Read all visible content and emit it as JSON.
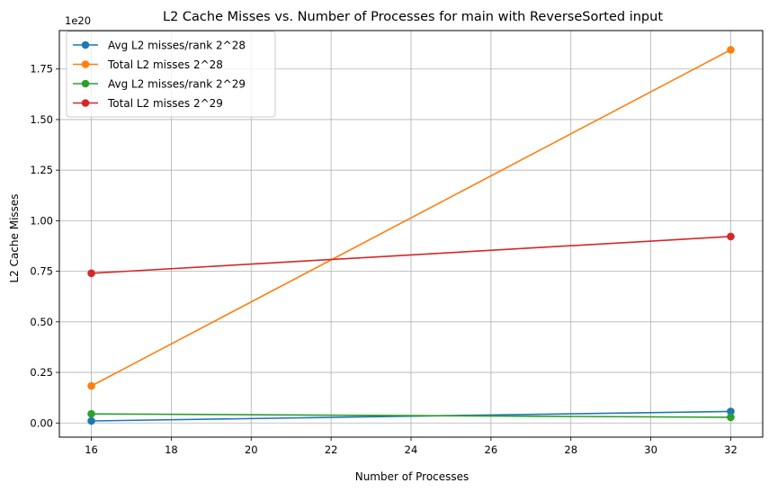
{
  "chart_data": {
    "type": "line",
    "title": "L2 Cache Misses vs. Number of Processes for main with ReverseSorted input",
    "xlabel": "Number of Processes",
    "ylabel": "L2 Cache Misses",
    "y_offset_label": "1e20",
    "y_scale": 1e+20,
    "x": [
      16,
      32
    ],
    "xlim": [
      15.2,
      32.8
    ],
    "ylim": [
      -0.07,
      1.94
    ],
    "xticks": [
      16,
      18,
      20,
      22,
      24,
      26,
      28,
      30,
      32
    ],
    "yticks": [
      0.0,
      0.25,
      0.5,
      0.75,
      1.0,
      1.25,
      1.5,
      1.75
    ],
    "ytick_labels": [
      "0.00",
      "0.25",
      "0.50",
      "0.75",
      "1.00",
      "1.25",
      "1.50",
      "1.75"
    ],
    "grid": true,
    "legend_position": "top-left",
    "series": [
      {
        "name": "Avg L2 misses/rank 2^28",
        "color": "#1f77b4",
        "values": [
          0.01,
          0.057
        ]
      },
      {
        "name": "Total L2 misses 2^28",
        "color": "#ff7f0e",
        "values": [
          0.183,
          1.845
        ]
      },
      {
        "name": "Avg L2 misses/rank 2^29",
        "color": "#2ca02c",
        "values": [
          0.045,
          0.028
        ]
      },
      {
        "name": "Total L2 misses 2^29",
        "color": "#d62728",
        "values": [
          0.74,
          0.922
        ]
      }
    ]
  }
}
